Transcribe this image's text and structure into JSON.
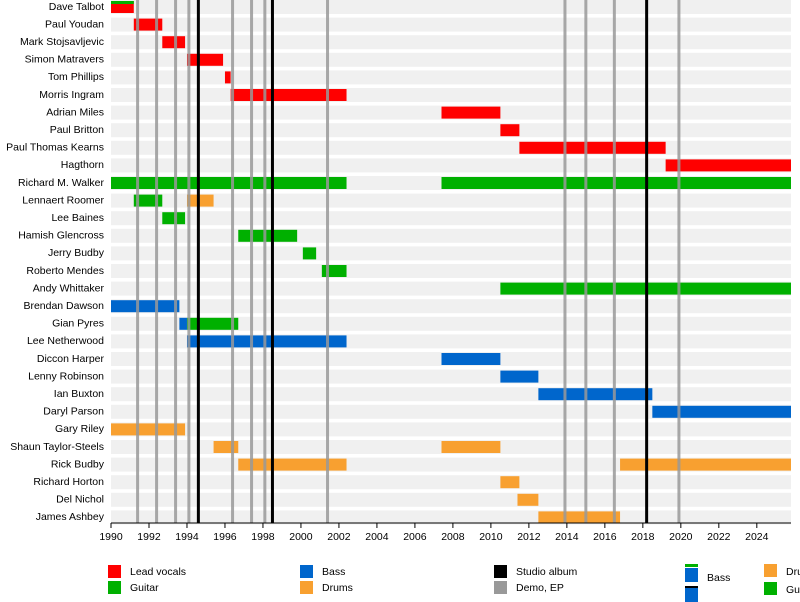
{
  "chart_data": {
    "type": "timeline",
    "xlim": [
      1990,
      2025.8
    ],
    "xticks": [
      1990,
      1992,
      1994,
      1996,
      1998,
      2000,
      2002,
      2004,
      2006,
      2008,
      2010,
      2012,
      2014,
      2016,
      2018,
      2020,
      2022,
      2024
    ],
    "roles": [
      {
        "name": "Lead vocals",
        "color": "#ff0000"
      },
      {
        "name": "Guitar",
        "color": "#00b000"
      },
      {
        "name": "Bass",
        "color": "#0066cc"
      },
      {
        "name": "Drums",
        "color": "#f8a030"
      }
    ],
    "release_types": [
      {
        "name": "Studio album",
        "color": "#000000"
      },
      {
        "name": "Demo, EP",
        "color": "#999999"
      }
    ],
    "releases": [
      {
        "type": "Demo, EP",
        "x": 1991.4
      },
      {
        "type": "Demo, EP",
        "x": 1992.4
      },
      {
        "type": "Demo, EP",
        "x": 1993.4
      },
      {
        "type": "Demo, EP",
        "x": 1994.1
      },
      {
        "type": "Studio album",
        "x": 1994.6
      },
      {
        "type": "Demo, EP",
        "x": 1996.4
      },
      {
        "type": "Demo, EP",
        "x": 1997.4
      },
      {
        "type": "Demo, EP",
        "x": 1998.1
      },
      {
        "type": "Studio album",
        "x": 1998.5
      },
      {
        "type": "Demo, EP",
        "x": 2001.4
      },
      {
        "type": "Demo, EP",
        "x": 2013.9
      },
      {
        "type": "Demo, EP",
        "x": 2015.0
      },
      {
        "type": "Demo, EP",
        "x": 2016.5
      },
      {
        "type": "Studio album",
        "x": 2018.2
      },
      {
        "type": "Demo, EP",
        "x": 2019.9
      }
    ],
    "members": [
      {
        "name": "Dave Talbot",
        "periods": [
          {
            "roles": [
              "Lead vocals",
              "Guitar"
            ],
            "start": 1990,
            "end": 1991.2
          }
        ]
      },
      {
        "name": "Paul Youdan",
        "periods": [
          {
            "roles": [
              "Lead vocals"
            ],
            "start": 1991.2,
            "end": 1992.7
          }
        ]
      },
      {
        "name": "Mark Stojsavljevic",
        "periods": [
          {
            "roles": [
              "Lead vocals"
            ],
            "start": 1992.7,
            "end": 1993.9
          }
        ]
      },
      {
        "name": "Simon Matravers",
        "periods": [
          {
            "roles": [
              "Lead vocals"
            ],
            "start": 1994.0,
            "end": 1995.9
          }
        ]
      },
      {
        "name": "Tom Phillips",
        "periods": [
          {
            "roles": [
              "Lead vocals"
            ],
            "start": 1996.0,
            "end": 1996.3
          }
        ]
      },
      {
        "name": "Morris Ingram",
        "periods": [
          {
            "roles": [
              "Lead vocals"
            ],
            "start": 1996.3,
            "end": 2002.4
          }
        ]
      },
      {
        "name": "Adrian Miles",
        "periods": [
          {
            "roles": [
              "Lead vocals"
            ],
            "start": 2007.4,
            "end": 2010.5
          }
        ]
      },
      {
        "name": "Paul Britton",
        "periods": [
          {
            "roles": [
              "Lead vocals"
            ],
            "start": 2010.5,
            "end": 2011.5
          }
        ]
      },
      {
        "name": "Paul Thomas Kearns",
        "periods": [
          {
            "roles": [
              "Lead vocals"
            ],
            "start": 2011.5,
            "end": 2019.2
          }
        ]
      },
      {
        "name": "Hagthorn",
        "periods": [
          {
            "roles": [
              "Lead vocals"
            ],
            "start": 2019.2,
            "end": 2025.8
          }
        ]
      },
      {
        "name": "Richard M. Walker",
        "periods": [
          {
            "roles": [
              "Guitar"
            ],
            "start": 1990,
            "end": 2002.4
          },
          {
            "roles": [
              "Guitar"
            ],
            "start": 2007.4,
            "end": 2025.8
          }
        ]
      },
      {
        "name": "Lennaert Roomer",
        "periods": [
          {
            "roles": [
              "Guitar"
            ],
            "start": 1991.2,
            "end": 1992.7
          },
          {
            "roles": [
              "Drums"
            ],
            "start": 1994.0,
            "end": 1995.4
          }
        ]
      },
      {
        "name": "Lee Baines",
        "periods": [
          {
            "roles": [
              "Guitar"
            ],
            "start": 1992.7,
            "end": 1993.9
          }
        ]
      },
      {
        "name": "Hamish Glencross",
        "periods": [
          {
            "roles": [
              "Guitar"
            ],
            "start": 1996.7,
            "end": 1999.8
          }
        ]
      },
      {
        "name": "Jerry Budby",
        "periods": [
          {
            "roles": [
              "Guitar"
            ],
            "start": 2000.1,
            "end": 2000.8
          }
        ]
      },
      {
        "name": "Roberto Mendes",
        "periods": [
          {
            "roles": [
              "Guitar"
            ],
            "start": 2001.1,
            "end": 2002.4
          }
        ]
      },
      {
        "name": "Andy Whittaker",
        "periods": [
          {
            "roles": [
              "Guitar"
            ],
            "start": 2010.5,
            "end": 2025.8
          }
        ]
      },
      {
        "name": "Brendan Dawson",
        "periods": [
          {
            "roles": [
              "Bass"
            ],
            "start": 1990,
            "end": 1993.6
          }
        ]
      },
      {
        "name": "Gian Pyres",
        "periods": [
          {
            "roles": [
              "Bass"
            ],
            "start": 1993.6,
            "end": 1994.0
          },
          {
            "roles": [
              "Guitar"
            ],
            "start": 1994.0,
            "end": 1996.7
          }
        ]
      },
      {
        "name": "Lee Netherwood",
        "periods": [
          {
            "roles": [
              "Bass"
            ],
            "start": 1994.0,
            "end": 2002.4
          }
        ]
      },
      {
        "name": "Diccon Harper",
        "periods": [
          {
            "roles": [
              "Bass"
            ],
            "start": 2007.4,
            "end": 2010.5
          }
        ]
      },
      {
        "name": "Lenny Robinson",
        "periods": [
          {
            "roles": [
              "Bass"
            ],
            "start": 2010.5,
            "end": 2012.5
          }
        ]
      },
      {
        "name": "Ian Buxton",
        "periods": [
          {
            "roles": [
              "Bass"
            ],
            "start": 2012.5,
            "end": 2018.5
          }
        ]
      },
      {
        "name": "Daryl Parson",
        "periods": [
          {
            "roles": [
              "Bass"
            ],
            "start": 2018.5,
            "end": 2025.8
          }
        ]
      },
      {
        "name": "Gary Riley",
        "periods": [
          {
            "roles": [
              "Drums"
            ],
            "start": 1990,
            "end": 1993.9
          }
        ]
      },
      {
        "name": "Shaun Taylor-Steels",
        "periods": [
          {
            "roles": [
              "Drums"
            ],
            "start": 1995.4,
            "end": 1996.7
          },
          {
            "roles": [
              "Drums"
            ],
            "start": 2007.4,
            "end": 2010.5
          }
        ]
      },
      {
        "name": "Rick Budby",
        "periods": [
          {
            "roles": [
              "Drums"
            ],
            "start": 1996.7,
            "end": 2002.4
          },
          {
            "roles": [
              "Drums"
            ],
            "start": 2016.8,
            "end": 2025.8
          }
        ]
      },
      {
        "name": "Richard Horton",
        "periods": [
          {
            "roles": [
              "Drums"
            ],
            "start": 2010.5,
            "end": 2011.5
          }
        ]
      },
      {
        "name": "Del Nichol",
        "periods": [
          {
            "roles": [
              "Drums"
            ],
            "start": 2011.4,
            "end": 2012.5
          }
        ]
      },
      {
        "name": "James Ashbey",
        "periods": [
          {
            "roles": [
              "Drums"
            ],
            "start": 2012.5,
            "end": 2016.8
          }
        ]
      }
    ]
  }
}
